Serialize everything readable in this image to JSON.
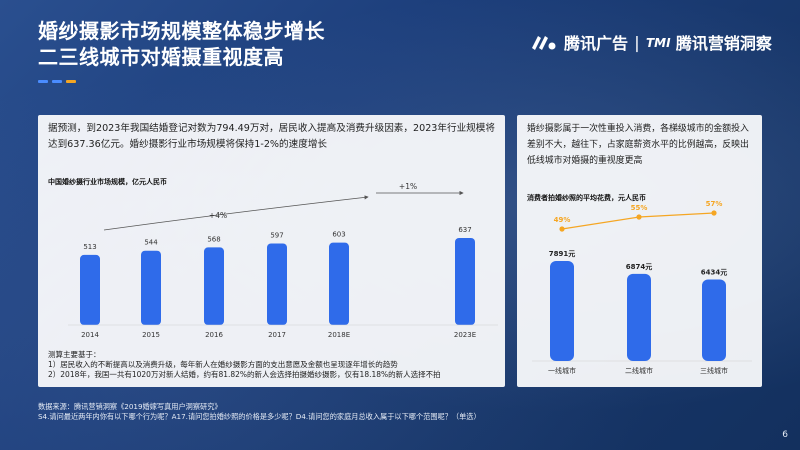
{
  "title_lines": [
    "婚纱摄影市场规模整体稳步增长",
    "二三线城市对婚摄重视度高"
  ],
  "brand": {
    "name": "腾讯广告",
    "sub": "腾讯营销洞察"
  },
  "colors": {
    "bar": "#2f6bea",
    "line": "#f5a623",
    "dash_primary": "#4a8cff",
    "dash_secondary": "#f5a623"
  },
  "left_panel": {
    "description": "据预测，到2023年我国结婚登记对数为794.49万对，居民收入提高及消费升级因素，2023年行业规模将达到637.36亿元。婚纱摄影行业市场规模将保持1-2%的速度增长",
    "notes": [
      "测算主要基于：",
      "1）居民收入的不断提高以及消费升级，每年新人在婚纱摄影方面的支出意愿及金额也呈现逐年增长的趋势",
      "2）2018年，我国一共有1020万对新人结婚，约有81.82%的新人会选择拍摄婚纱摄影，仅有18.18%的新人选择不拍"
    ]
  },
  "right_panel": {
    "description": "婚纱摄影属于一次性重投入消费，各梯级城市的金额投入差别不大，越往下，占家庭薪资水平的比例越高，反映出低线城市对婚摄的重视度更高"
  },
  "chart_data": [
    {
      "type": "bar",
      "title": "中国婚纱摄行业市场规模，亿元人民币",
      "categories": [
        "2014",
        "2015",
        "2016",
        "2017",
        "2018E",
        "2023E"
      ],
      "values": [
        513,
        544,
        568,
        597,
        603,
        637
      ],
      "annotations": [
        "+4%",
        "+1%"
      ],
      "ylim": [
        0,
        700
      ]
    },
    {
      "type": "bar",
      "title": "消费者拍婚纱照的平均花费，元人民币",
      "categories": [
        "一线城市",
        "二线城市",
        "三线城市"
      ],
      "values": [
        7891,
        6874,
        6434
      ],
      "value_labels": [
        "7891元",
        "6874元",
        "6434元"
      ],
      "line_series": {
        "values": [
          49,
          55,
          57
        ],
        "labels": [
          "49%",
          "55%",
          "57%"
        ]
      }
    }
  ],
  "footnote": [
    "数据来源：腾讯营销洞察《2019婚嫁写真用户洞察研究》",
    "S4.请问最近两年内你有以下哪个行为呢？A17.请问您拍婚纱照的价格是多少呢？D4.请问您的家庭月总收入属于以下哪个范围呢？（单选）"
  ],
  "page_number": "6"
}
